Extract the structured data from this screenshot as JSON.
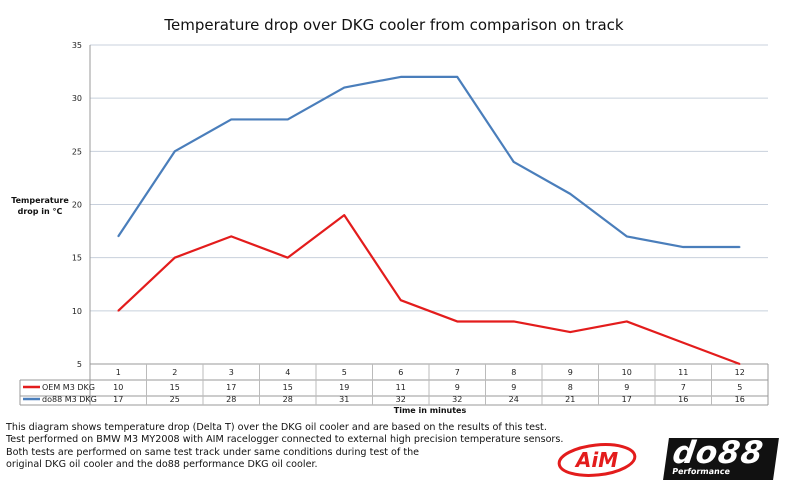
{
  "chart_data": {
    "type": "line",
    "title": "Temperature drop over DKG cooler from comparison on track",
    "xlabel": "Time in minutes",
    "ylabel": "Temperature drop in °C",
    "ylim": [
      5,
      35
    ],
    "yticks": [
      5,
      10,
      15,
      20,
      25,
      30,
      35
    ],
    "grid": true,
    "legend": "data-table",
    "categories": [
      "1",
      "2",
      "3",
      "4",
      "5",
      "6",
      "7",
      "8",
      "9",
      "10",
      "11",
      "12"
    ],
    "series": [
      {
        "name": "OEM M3 DKG",
        "color": "#e31c1c",
        "values": [
          10,
          15,
          17,
          15,
          19,
          11,
          9,
          9,
          8,
          9,
          7,
          5
        ]
      },
      {
        "name": "do88 M3 DKG",
        "color": "#4a7ebb",
        "values": [
          17,
          25,
          28,
          28,
          31,
          32,
          32,
          24,
          21,
          17,
          16,
          16
        ]
      }
    ]
  },
  "description": [
    "This diagram shows temperature drop (Delta T) over the DKG oil cooler and are based on the results of this test.",
    "Test performed on BMW M3 MY2008 with AIM racelogger connected to external high precision temperature sensors.",
    "Both tests are performed on same test track under same conditions during test of the",
    "original DKG oil cooler and the do88 performance DKG oil cooler."
  ],
  "logos": {
    "aim": "AiM",
    "do88": "do88",
    "do88_sub": "Performance"
  }
}
